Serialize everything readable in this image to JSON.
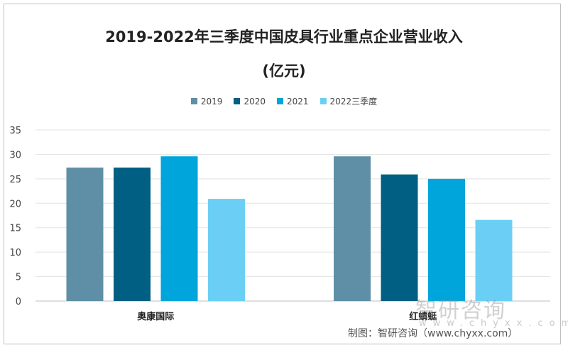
{
  "chart_data": {
    "type": "bar",
    "title": "2019-2022年三季度中国皮具行业重点企业营业收入",
    "subtitle": "(亿元)",
    "categories": [
      "奥康国际",
      "红蜻蜓"
    ],
    "series": [
      {
        "name": "2019",
        "color": "#5f8fa6",
        "values": [
          27.3,
          29.6
        ]
      },
      {
        "name": "2020",
        "color": "#005f83",
        "values": [
          27.3,
          25.9
        ]
      },
      {
        "name": "2021",
        "color": "#00a5dc",
        "values": [
          29.6,
          25.0
        ]
      },
      {
        "name": "2022三季度",
        "color": "#6bcff5",
        "values": [
          20.9,
          16.6
        ]
      }
    ],
    "yticks": [
      0,
      5,
      10,
      15,
      20,
      25,
      30,
      35
    ],
    "ylim": [
      0,
      35
    ],
    "grid": true,
    "legend": "top"
  },
  "watermark": {
    "brand": "智研咨询",
    "url": "www.chyxx.com"
  },
  "source": "制图：智研咨询（www.chyxx.com）"
}
